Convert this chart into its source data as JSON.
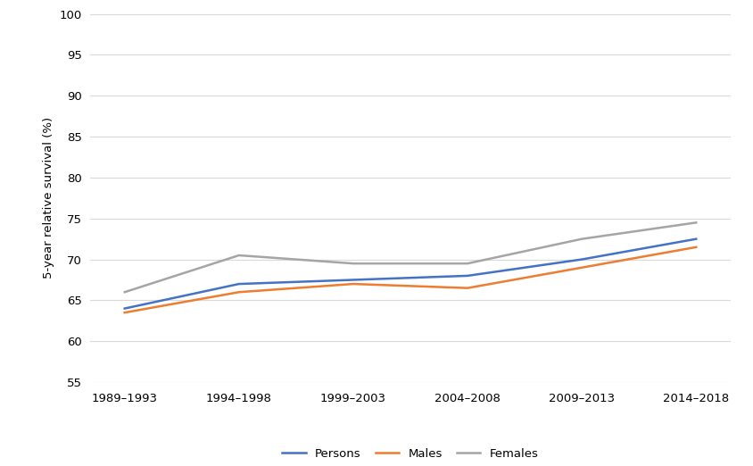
{
  "x_labels": [
    "1989–1993",
    "1994–1998",
    "1999–2003",
    "2004–2008",
    "2009–2013",
    "2014–2018"
  ],
  "persons": [
    64.0,
    67.0,
    67.5,
    68.0,
    70.0,
    72.5
  ],
  "males": [
    63.5,
    66.0,
    67.0,
    66.5,
    69.0,
    71.5
  ],
  "females": [
    66.0,
    70.5,
    69.5,
    69.5,
    72.5,
    74.5
  ],
  "persons_color": "#4472C4",
  "males_color": "#ED7D31",
  "females_color": "#A5A5A5",
  "ylabel": "5-year relative survival (%)",
  "ylim_min": 55,
  "ylim_max": 100,
  "yticks": [
    55,
    60,
    65,
    70,
    75,
    80,
    85,
    90,
    95,
    100
  ],
  "legend_labels": [
    "Persons",
    "Males",
    "Females"
  ],
  "line_width": 1.8,
  "background_color": "#ffffff",
  "grid_color": "#d9d9d9",
  "tick_label_fontsize": 9.5,
  "axis_label_fontsize": 9.5
}
